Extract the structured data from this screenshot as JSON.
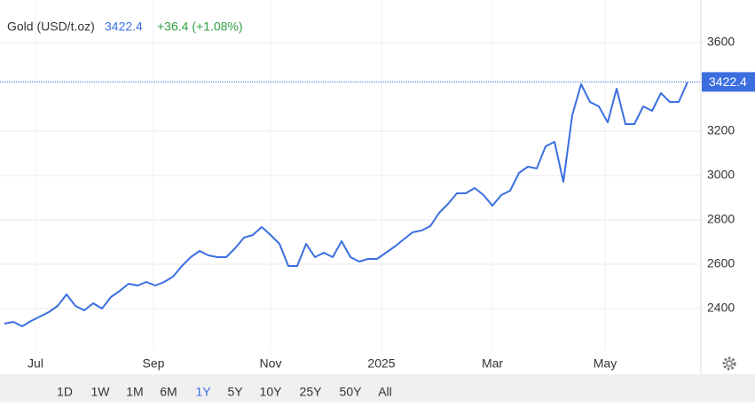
{
  "chart_data": {
    "type": "line",
    "title": "Gold (USD/t.oz)",
    "last_price": 3422.4,
    "change": "+36.4 (+1.08%)",
    "series": [
      {
        "name": "Gold",
        "color": "#3b6fe0",
        "values": [
          2332,
          2340,
          2320,
          2344,
          2364,
          2384,
          2412,
          2464,
          2412,
          2392,
          2424,
          2400,
          2452,
          2480,
          2512,
          2504,
          2520,
          2504,
          2520,
          2544,
          2592,
          2632,
          2660,
          2640,
          2632,
          2632,
          2672,
          2720,
          2732,
          2768,
          2732,
          2692,
          2592,
          2592,
          2692,
          2632,
          2652,
          2632,
          2704,
          2632,
          2612,
          2624,
          2624,
          2652,
          2680,
          2712,
          2744,
          2752,
          2772,
          2832,
          2872,
          2920,
          2920,
          2944,
          2912,
          2864,
          2912,
          2932,
          3012,
          3040,
          3032,
          3132,
          3152,
          2972,
          3272,
          3412,
          3332,
          3312,
          3240,
          3392,
          3232,
          3232,
          3312,
          3292,
          3372,
          3332,
          3332,
          3422.4
        ]
      }
    ],
    "xlim": [
      -0.5,
      78.5
    ],
    "xticks": [
      {
        "value": 3.5,
        "label": "Jul"
      },
      {
        "value": 16.8,
        "label": "Sep"
      },
      {
        "value": 30,
        "label": "Nov"
      },
      {
        "value": 42.5,
        "label": "2025"
      },
      {
        "value": 55,
        "label": "Mar"
      },
      {
        "value": 67.7,
        "label": "May"
      }
    ],
    "ylim": [
      2212,
      3792
    ],
    "yticks": [
      2400,
      2600,
      2800,
      3000,
      3200,
      3600
    ],
    "grid": true,
    "ranges": [
      "1D",
      "1W",
      "1M",
      "6M",
      "1Y",
      "5Y",
      "10Y",
      "25Y",
      "50Y",
      "All"
    ],
    "active_range": "1Y"
  }
}
